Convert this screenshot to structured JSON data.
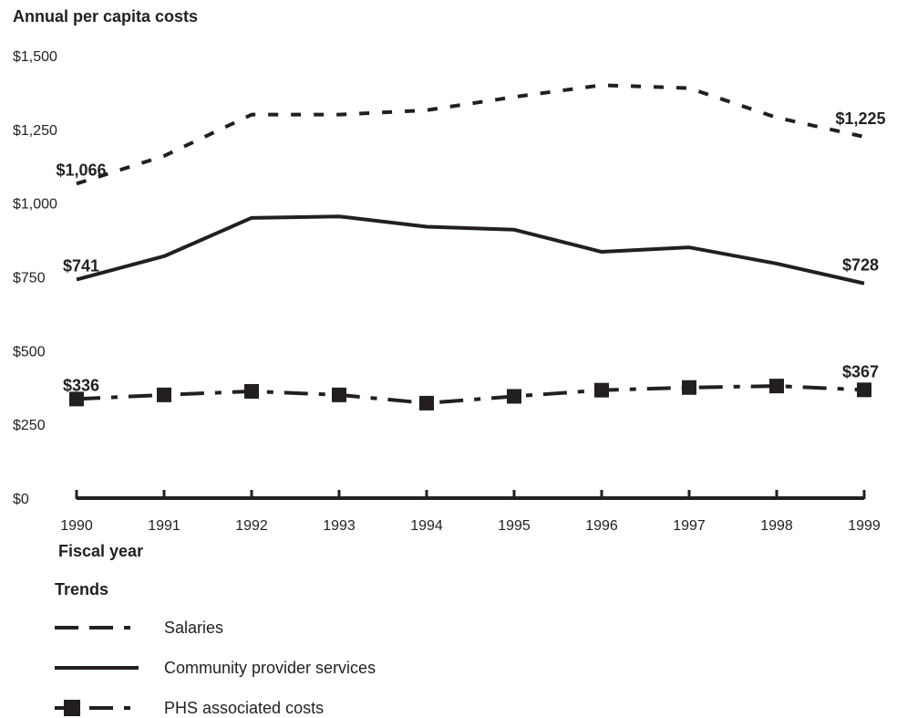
{
  "chart_data": {
    "type": "line",
    "title": "Annual per capita costs",
    "xlabel": "Fiscal year",
    "ylabel": "",
    "x": [
      "1990",
      "1991",
      "1992",
      "1993",
      "1994",
      "1995",
      "1996",
      "1997",
      "1998",
      "1999"
    ],
    "yticks": [
      "$0",
      "$250",
      "$500",
      "$750",
      "$1,000",
      "$1,250",
      "$1,500"
    ],
    "ylim": [
      0,
      1500
    ],
    "grid": false,
    "legend_title": "Trends",
    "legend_position": "bottom-left",
    "series": [
      {
        "name": "Salaries",
        "style": "dashed",
        "values": [
          1066,
          1160,
          1300,
          1300,
          1315,
          1360,
          1400,
          1390,
          1290,
          1225
        ],
        "start_label": "$1,066",
        "end_label": "$1,225"
      },
      {
        "name": "Community provider services",
        "style": "solid",
        "values": [
          741,
          820,
          950,
          955,
          920,
          910,
          835,
          850,
          795,
          728
        ],
        "start_label": "$741",
        "end_label": "$728"
      },
      {
        "name": "PHS associated costs",
        "style": "dash-dot-square",
        "values": [
          336,
          350,
          362,
          350,
          322,
          345,
          366,
          375,
          380,
          367
        ],
        "start_label": "$336",
        "end_label": "$367"
      }
    ]
  }
}
